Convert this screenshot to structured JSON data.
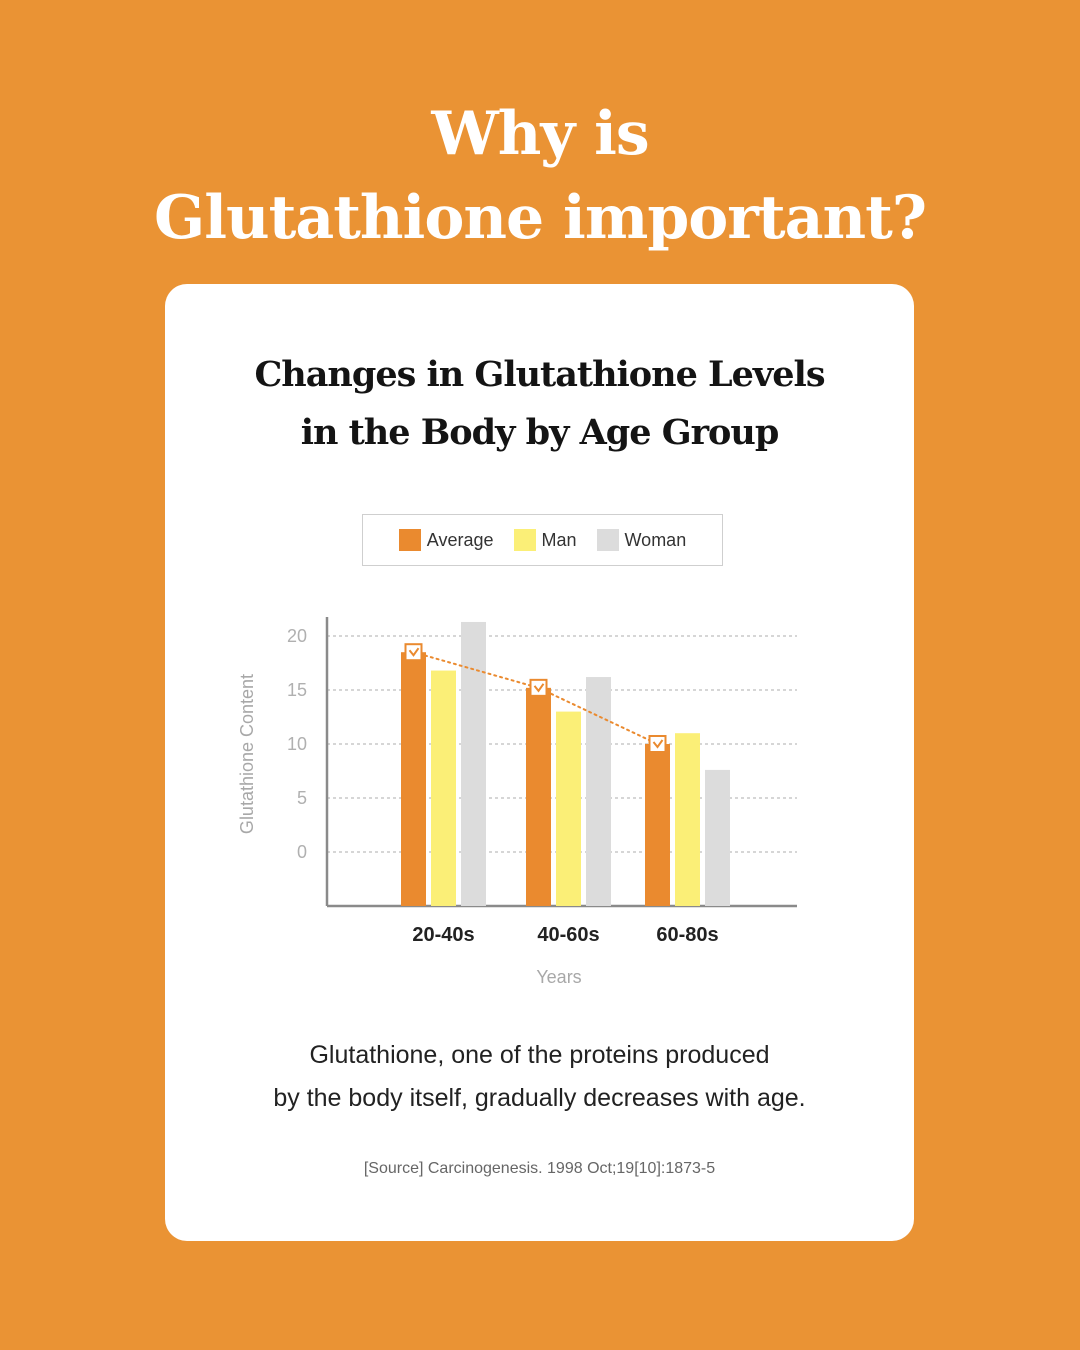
{
  "headline": {
    "line1": "Why is",
    "line2": "Glutathione important?"
  },
  "card": {
    "caption_line1": "Glutathione, one of the proteins produced",
    "caption_line2": "by the body itself, gradually decreases with age.",
    "source": "[Source] Carcinogenesis. 1998 Oct;19[10]:1873-5"
  },
  "chart_data": {
    "type": "bar",
    "title_line1": "Changes in Glutathione Levels",
    "title_line2": "in the Body by Age Group",
    "categories": [
      "20-40s",
      "40-60s",
      "60-80s"
    ],
    "series": [
      {
        "name": "Average",
        "color": "#EA8A2F",
        "values": [
          18.5,
          15.2,
          10.0
        ]
      },
      {
        "name": "Man",
        "color": "#FBEF77",
        "values": [
          16.8,
          13.0,
          11.0
        ]
      },
      {
        "name": "Woman",
        "color": "#DCDCDC",
        "values": [
          21.3,
          16.2,
          7.6
        ]
      }
    ],
    "trend_line": {
      "series": "Average",
      "style": "dotted",
      "color": "#EA8A2F",
      "marker": "check-box"
    },
    "xlabel": "Years",
    "ylabel": "Glutathione Content",
    "yticks": [
      "0",
      "5",
      "10",
      "15",
      "20"
    ],
    "ylim": [
      -5,
      20
    ],
    "grid": true,
    "legend_position": "top-center"
  }
}
